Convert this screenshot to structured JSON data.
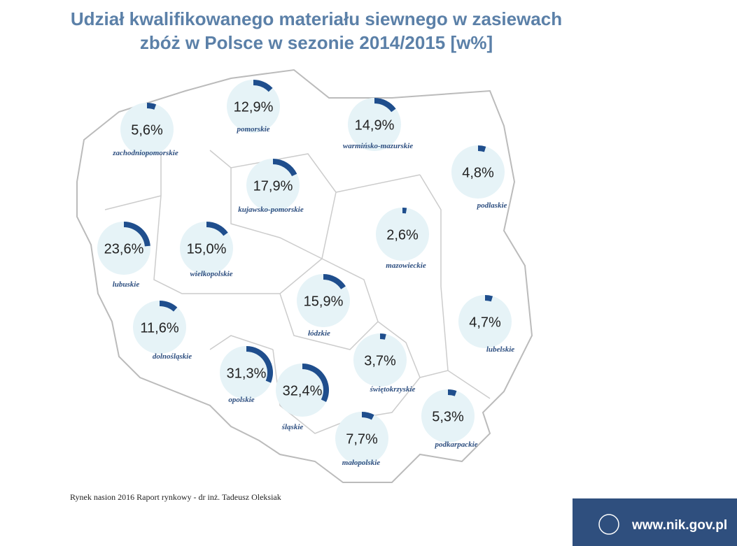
{
  "title": [
    "Udział kwalifikowanego materiału siewnego w zasiewach",
    "zbóż w Polsce w sezonie 2014/2015 [w%]"
  ],
  "regions": [
    {
      "name": "zachodniopomorskie",
      "value": 5.6,
      "value_label": "5,6%"
    },
    {
      "name": "pomorskie",
      "value": 12.9,
      "value_label": "12,9%"
    },
    {
      "name": "warmińsko-mazurskie",
      "value": 14.9,
      "value_label": "14,9%"
    },
    {
      "name": "podlaskie",
      "value": 4.8,
      "value_label": "4,8%"
    },
    {
      "name": "kujawsko-pomorskie",
      "value": 17.9,
      "value_label": "17,9%"
    },
    {
      "name": "lubuskie",
      "value": 23.6,
      "value_label": "23,6%"
    },
    {
      "name": "wielkopolskie",
      "value": 15.0,
      "value_label": "15,0%"
    },
    {
      "name": "mazowieckie",
      "value": 2.6,
      "value_label": "2,6%"
    },
    {
      "name": "łódzkie",
      "value": 15.9,
      "value_label": "15,9%"
    },
    {
      "name": "dolnośląskie",
      "value": 11.6,
      "value_label": "11,6%"
    },
    {
      "name": "lubelskie",
      "value": 4.7,
      "value_label": "4,7%"
    },
    {
      "name": "opolskie",
      "value": 31.3,
      "value_label": "31,3%"
    },
    {
      "name": "śląskie",
      "value": 32.4,
      "value_label": "32,4%"
    },
    {
      "name": "świętokrzyskie",
      "value": 3.7,
      "value_label": "3,7%"
    },
    {
      "name": "podkarpackie",
      "value": 5.3,
      "value_label": "5,3%"
    },
    {
      "name": "małopolskie",
      "value": 7.7,
      "value_label": "7,7%"
    }
  ],
  "source": "Rynek nasion 2016 Raport rynkowy - dr inż. Tadeusz Oleksiak",
  "footer": "www.nik.gov.pl"
}
